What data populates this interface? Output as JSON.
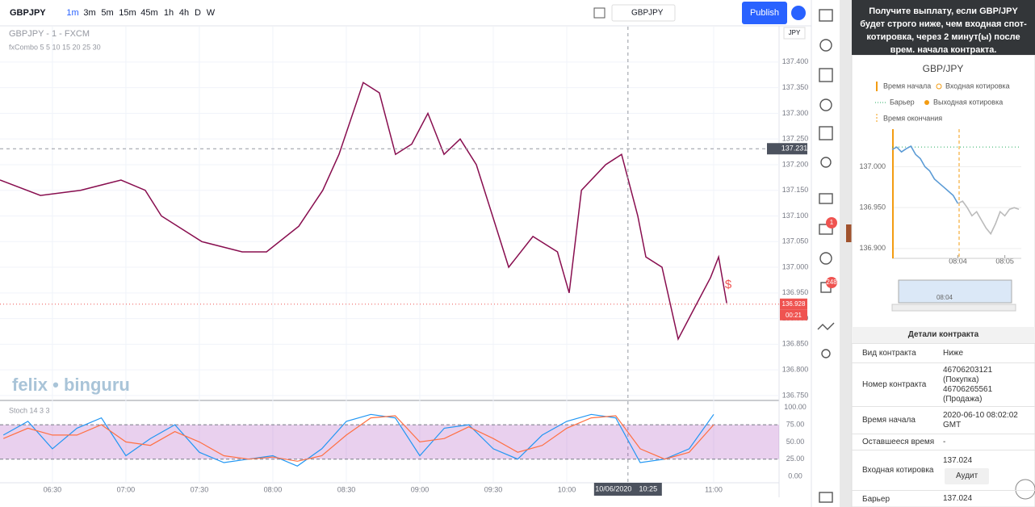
{
  "toolbar": {
    "symbol": "GBPJPY",
    "intervals": [
      "1m",
      "3m",
      "5m",
      "15m",
      "45m",
      "1h",
      "4h",
      "D",
      "W"
    ],
    "compare_symbol": "GBPJPY",
    "publish": "Publish"
  },
  "sidebar_badges": [
    1,
    248
  ],
  "chart_data": [
    {
      "type": "line",
      "title": "GBPJPY - 1 - FXCM",
      "subtitle": "fxCombo 5 5 10 15 20 25 30",
      "currency": "JPY",
      "watermark": "felix • binguru",
      "annotation": "$",
      "x": [
        368.6,
        385.1,
        401.5,
        418.0,
        427.9,
        434.5,
        451.0,
        467.5,
        477.4,
        490.6,
        500.4,
        507.0,
        516.9,
        523.5,
        530.1,
        536.7,
        543.3,
        549.9,
        556.5,
        563.1,
        569.7,
        576.3,
        586.2,
        596.2,
        601.0,
        606.0,
        615.9,
        622.4,
        629.0,
        632.3,
        638.9,
        645.5,
        652.1,
        658.7,
        662.0,
        665.3
      ],
      "series": [
        {
          "color": "#880e4f",
          "values": [
            137.17,
            137.14,
            137.15,
            137.17,
            137.15,
            137.1,
            137.05,
            137.03,
            137.03,
            137.08,
            137.15,
            137.22,
            137.36,
            137.34,
            137.22,
            137.24,
            137.3,
            137.22,
            137.25,
            137.2,
            137.1,
            137.0,
            137.06,
            137.03,
            136.95,
            137.15,
            137.2,
            137.22,
            137.1,
            137.02,
            137.0,
            136.86,
            136.92,
            136.98,
            137.02,
            136.93
          ]
        }
      ],
      "xlim": [
        368.6,
        686.7
      ],
      "ylim": [
        136.742,
        137.458
      ],
      "xticks": [
        {
          "value": 390,
          "label": "06:30"
        },
        {
          "value": 420,
          "label": "07:00"
        },
        {
          "value": 450,
          "label": "07:30"
        },
        {
          "value": 480,
          "label": "08:00"
        },
        {
          "value": 510,
          "label": "08:30"
        },
        {
          "value": 540,
          "label": "09:00"
        },
        {
          "value": 570,
          "label": "09:30"
        },
        {
          "value": 600,
          "label": "10:00"
        },
        {
          "value": 660,
          "label": "11:00"
        }
      ],
      "yticks": [
        {
          "value": 137.4,
          "label": "137.400"
        },
        {
          "value": 137.35,
          "label": "137.350"
        },
        {
          "value": 137.3,
          "label": "137.300"
        },
        {
          "value": 137.25,
          "label": "137.250"
        },
        {
          "value": 137.2,
          "label": "137.200"
        },
        {
          "value": 137.15,
          "label": "137.150"
        },
        {
          "value": 137.1,
          "label": "137.100"
        },
        {
          "value": 137.05,
          "label": "137.050"
        },
        {
          "value": 137.0,
          "label": "137.000"
        },
        {
          "value": 136.95,
          "label": "136.950"
        },
        {
          "value": 136.9,
          "label": "136.900"
        },
        {
          "value": 136.85,
          "label": "136.850"
        },
        {
          "value": 136.8,
          "label": "136.800"
        },
        {
          "value": 136.75,
          "label": "136.750"
        }
      ],
      "grid": true,
      "crosshair_price": 137.231,
      "crosshair_date": "10/06/2020",
      "crosshair_x": {
        "value": 625,
        "label": "10:25"
      },
      "last_price": 136.928,
      "countdown": "00:21"
    },
    {
      "type": "line",
      "title": "Stoch 14 3 3",
      "x": [
        370,
        380,
        390,
        400,
        410,
        420,
        430,
        440,
        450,
        460,
        470,
        480,
        490,
        500,
        510,
        520,
        530,
        540,
        550,
        560,
        570,
        580,
        590,
        600,
        610,
        620,
        630,
        640,
        650,
        660
      ],
      "series": [
        {
          "color": "#2196f3",
          "values": [
            60,
            80,
            40,
            70,
            85,
            30,
            55,
            75,
            35,
            20,
            25,
            30,
            15,
            40,
            80,
            90,
            85,
            30,
            70,
            75,
            40,
            25,
            60,
            80,
            90,
            85,
            20,
            25,
            40,
            90
          ]
        },
        {
          "color": "#ff7043",
          "values": [
            55,
            70,
            60,
            60,
            75,
            50,
            45,
            65,
            50,
            30,
            25,
            28,
            22,
            30,
            60,
            85,
            88,
            50,
            55,
            72,
            55,
            35,
            45,
            70,
            85,
            88,
            40,
            25,
            35,
            75
          ]
        }
      ],
      "ylim": [
        -7,
        108
      ],
      "yticks": [
        {
          "value": 100,
          "label": "100.00"
        },
        {
          "value": 75,
          "label": "75.00"
        },
        {
          "value": 50,
          "label": "50.00"
        },
        {
          "value": 25,
          "label": "25.00"
        },
        {
          "value": 0,
          "label": "0.00"
        }
      ]
    },
    {
      "type": "line",
      "title": "GBP/JPY",
      "legend": [
        "Время начала",
        "Входная котировка",
        "Барьер",
        "Выходная котировка",
        "Время окончания"
      ],
      "series": [
        {
          "color": "#5b9bd5",
          "x": [
            482.6,
            482.7,
            482.8,
            482.9,
            483.0,
            483.1,
            483.2,
            483.3,
            483.4,
            483.5,
            483.6,
            483.7,
            483.8,
            483.9,
            484.0
          ],
          "values": [
            137.021,
            137.024,
            137.018,
            137.022,
            137.025,
            137.015,
            137.01,
            137.0,
            136.995,
            136.985,
            136.98,
            136.975,
            136.97,
            136.965,
            136.955
          ]
        },
        {
          "color": "#bbbbbb",
          "x": [
            484.0,
            484.1,
            484.2,
            484.3,
            484.4,
            484.5,
            484.6,
            484.7,
            484.8,
            484.9,
            485.0,
            485.1,
            485.2,
            485.3
          ],
          "values": [
            136.955,
            136.958,
            136.95,
            136.94,
            136.945,
            136.935,
            136.925,
            136.918,
            136.93,
            136.945,
            136.94,
            136.948,
            136.95,
            136.948
          ]
        }
      ],
      "xlim": [
        482.6,
        485.35
      ],
      "ylim": [
        136.888,
        137.036
      ],
      "xticks": [
        {
          "value": 484,
          "label": "08:04"
        },
        {
          "value": 485,
          "label": "08:05"
        }
      ],
      "yticks": [
        {
          "value": 137.0,
          "label": "137.000"
        },
        {
          "value": 136.95,
          "label": "136.950"
        },
        {
          "value": 136.9,
          "label": "136.900"
        }
      ],
      "navigator_label": "08:04"
    }
  ],
  "panel": {
    "header": "Получите выплату, если GBP/JPY будет строго ниже, чем входная спот-котировка, через 2 минут(ы) после врем. начала контракта.",
    "details_title": "Детали контракта",
    "rows": [
      {
        "label": "Вид контракта",
        "value": [
          "Ниже"
        ]
      },
      {
        "label": "Номер контракта",
        "value": [
          "46706203121",
          "(Покупка)",
          "46706265561",
          "(Продажа)"
        ]
      },
      {
        "label": "Время начала",
        "value": [
          "2020-06-10 08:02:02",
          "GMT"
        ]
      },
      {
        "label": "Оставшееся время",
        "value": [
          "-"
        ]
      },
      {
        "label": "Входная котировка",
        "value": [
          137.024
        ],
        "button": "Аудит"
      },
      {
        "label": "Барьер",
        "value": [
          137.024
        ]
      }
    ]
  }
}
